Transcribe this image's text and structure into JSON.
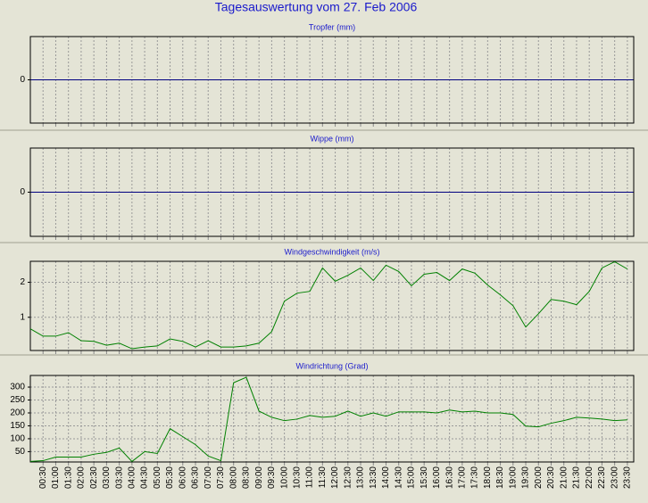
{
  "title": "Tagesauswertung vom 27. Feb 2006",
  "chart_data": [
    {
      "type": "line",
      "title": "Tropfer (mm)",
      "ylim": [
        -1,
        1
      ],
      "yticks": [
        0
      ],
      "grid_color": "#000080"
    },
    {
      "type": "line",
      "title": "Wippe (mm)",
      "ylim": [
        -1,
        1
      ],
      "yticks": [
        0
      ],
      "grid_color": "#000080"
    },
    {
      "type": "line",
      "title": "Windgeschwindigkeit (m/s)",
      "ylim": [
        0.05,
        2.6
      ],
      "yticks": [
        1,
        2
      ],
      "grid_color": "#999999",
      "series": [
        {
          "color": "#008000",
          "values": [
            0.67,
            0.46,
            0.46,
            0.56,
            0.33,
            0.31,
            0.2,
            0.26,
            0.1,
            0.15,
            0.18,
            0.38,
            0.31,
            0.15,
            0.33,
            0.15,
            0.15,
            0.18,
            0.26,
            0.59,
            1.46,
            1.69,
            1.74,
            2.41,
            2.03,
            2.2,
            2.41,
            2.05,
            2.49,
            2.31,
            1.9,
            2.23,
            2.28,
            2.05,
            2.38,
            2.26,
            1.92,
            1.64,
            1.33,
            0.72,
            1.1,
            1.51,
            1.46,
            1.36,
            1.74,
            2.41,
            2.59,
            2.38
          ]
        }
      ]
    },
    {
      "type": "line",
      "title": "Windrichtung (Grad)",
      "ylim": [
        10,
        345
      ],
      "yticks": [
        50,
        100,
        150,
        200,
        250,
        300
      ],
      "grid_color": "#999999",
      "categories": [
        null,
        "00:30",
        "01:00",
        "01:30",
        "02:00",
        "02:30",
        "03:00",
        "03:30",
        "04:00",
        "04:30",
        "05:00",
        "05:30",
        "06:00",
        "06:30",
        "07:00",
        "07:30",
        "08:00",
        "08:30",
        "09:00",
        "09:30",
        "10:00",
        "10:30",
        "11:00",
        "11:30",
        "12:00",
        "12:30",
        "13:00",
        "13:30",
        "14:00",
        "14:30",
        "15:00",
        "15:30",
        "16:00",
        "16:30",
        "17:00",
        "17:30",
        "18:00",
        "18:30",
        "19:00",
        "19:30",
        "20:00",
        "20:30",
        "21:00",
        "21:30",
        "22:00",
        "22:30",
        "23:00",
        "23:30"
      ],
      "series": [
        {
          "color": "#008000",
          "values": [
            12,
            15,
            29,
            29,
            29,
            40,
            47,
            64,
            12,
            50,
            43,
            139,
            108,
            77,
            33,
            15,
            317,
            338,
            207,
            183,
            170,
            176,
            190,
            183,
            187,
            207,
            187,
            200,
            187,
            204,
            204,
            204,
            200,
            211,
            204,
            207,
            200,
            200,
            194,
            149,
            146,
            160,
            170,
            183,
            180,
            176,
            170,
            173
          ]
        }
      ]
    }
  ]
}
